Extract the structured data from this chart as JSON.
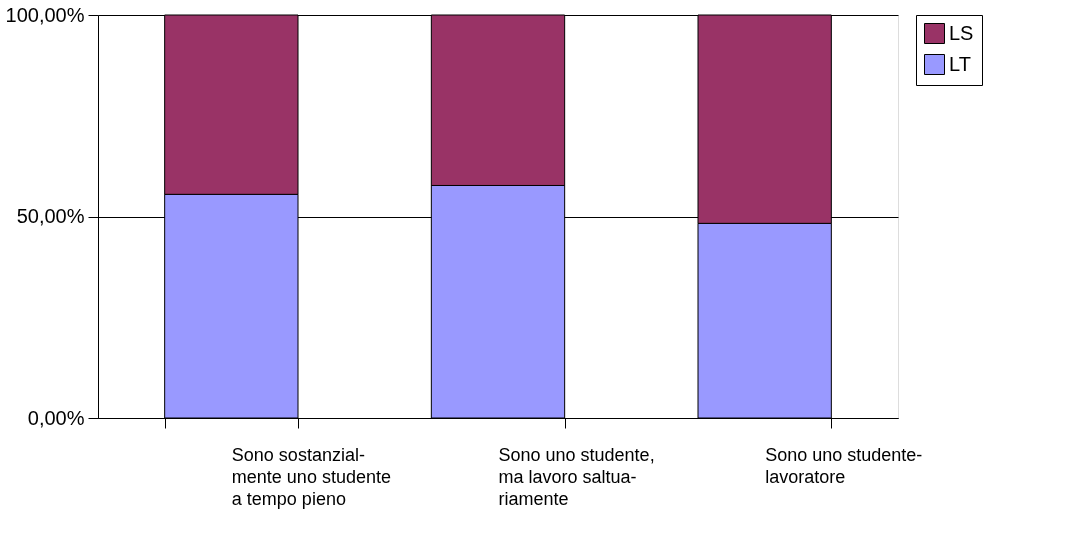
{
  "chart_data": {
    "type": "bar",
    "stacked": true,
    "categories": [
      "Sono sostanzial-\nmente uno studente\na tempo pieno",
      "Sono uno studente,\nma lavoro saltua-\nriamente",
      "Sono uno studente-\nlavoratore"
    ],
    "series": [
      {
        "name": "LT",
        "color": "#9999ff",
        "values": [
          55.5,
          57.7,
          48.3
        ]
      },
      {
        "name": "LS",
        "color": "#993366",
        "values": [
          44.5,
          42.3,
          51.7
        ]
      }
    ],
    "ylim": [
      0,
      100
    ],
    "yticks": [
      {
        "value": 0,
        "label": "0,00%"
      },
      {
        "value": 50,
        "label": "50,00%"
      },
      {
        "value": 100,
        "label": "100,00%"
      }
    ],
    "grid": "y",
    "legend": "right"
  }
}
